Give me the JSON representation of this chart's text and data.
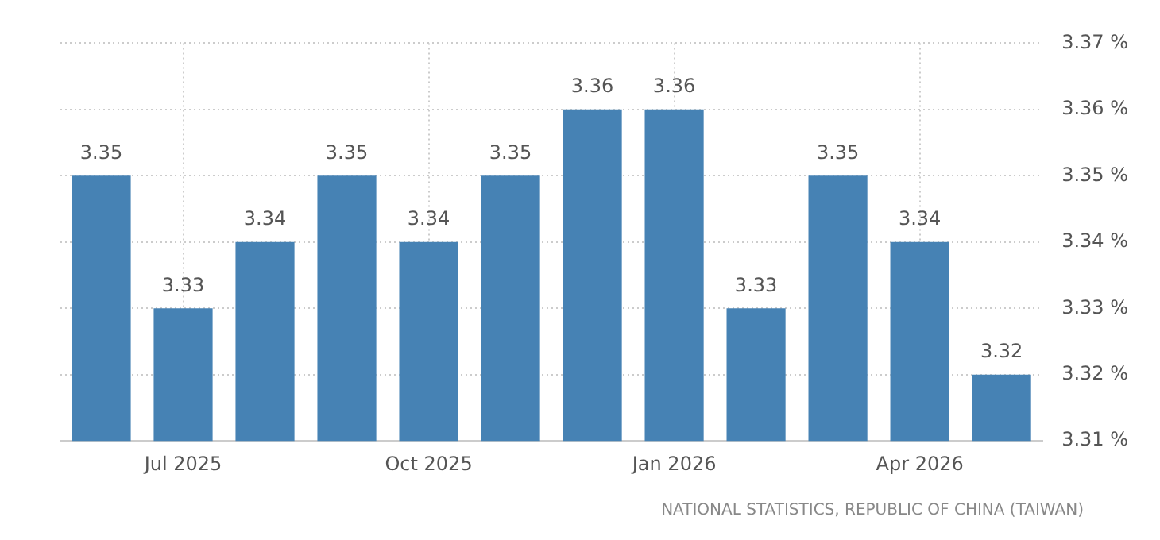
{
  "chart_data": {
    "type": "bar",
    "categories": [
      null,
      "Jul 2025",
      null,
      null,
      "Oct 2025",
      null,
      null,
      "Jan 2026",
      null,
      null,
      "Apr 2026",
      null
    ],
    "values": [
      3.35,
      3.33,
      3.34,
      3.35,
      3.34,
      3.35,
      3.36,
      3.36,
      3.33,
      3.35,
      3.34,
      3.32
    ],
    "color": "#4682b4",
    "ylim": [
      3.31,
      3.37
    ],
    "yticks": [
      {
        "value": 3.31,
        "label": "3.31 %"
      },
      {
        "value": 3.32,
        "label": "3.32 %"
      },
      {
        "value": 3.33,
        "label": "3.33 %"
      },
      {
        "value": 3.34,
        "label": "3.34 %"
      },
      {
        "value": 3.35,
        "label": "3.35 %"
      },
      {
        "value": 3.36,
        "label": "3.36 %"
      },
      {
        "value": 3.37,
        "label": "3.37 %"
      }
    ],
    "grid": true,
    "data_labels": true,
    "annotations": [
      "NATIONAL STATISTICS, REPUBLIC OF CHINA (TAIWAN)"
    ]
  }
}
